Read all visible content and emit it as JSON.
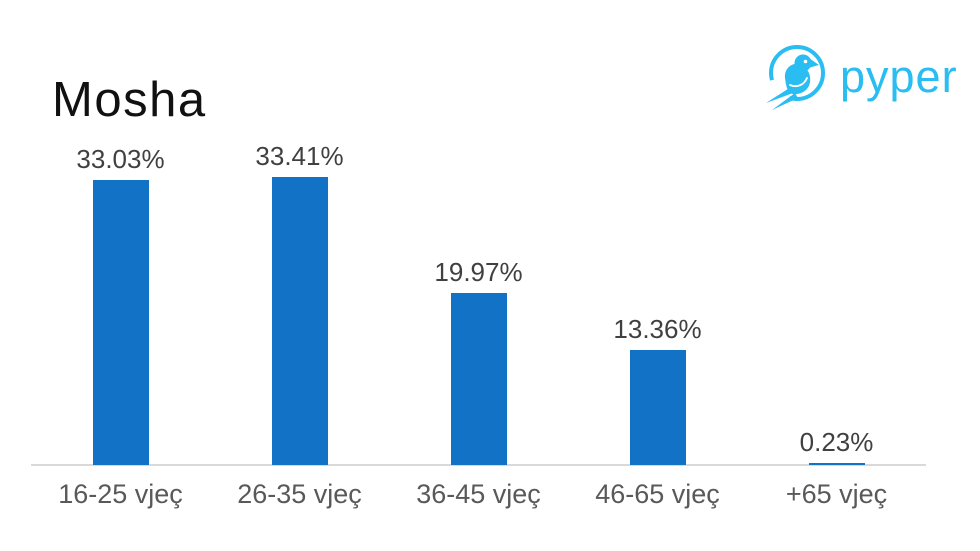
{
  "title": "Mosha",
  "logo": {
    "brand": "pyper",
    "icon": "pyper-bird-icon",
    "color": "#29BDF2"
  },
  "chart_data": {
    "type": "bar",
    "title": "Mosha",
    "categories": [
      "16-25 vjeç",
      "26-35 vjeç",
      "36-45 vjeç",
      "46-65 vjeç",
      "+65 vjeç"
    ],
    "values": [
      33.03,
      33.41,
      19.97,
      13.36,
      0.23
    ],
    "data_labels": [
      "33.03%",
      "33.41%",
      "19.97%",
      "13.36%",
      "0.23%"
    ],
    "xlabel": "",
    "ylabel": "",
    "ylim": [
      0,
      37
    ],
    "grid": false,
    "legend": false,
    "axis_line": "bottom-only",
    "bar_color": "#1272C6",
    "baseline_color": "#D9D9D9",
    "value_label_color": "#404040",
    "category_label_color": "#595959",
    "title_color": "#111111"
  }
}
